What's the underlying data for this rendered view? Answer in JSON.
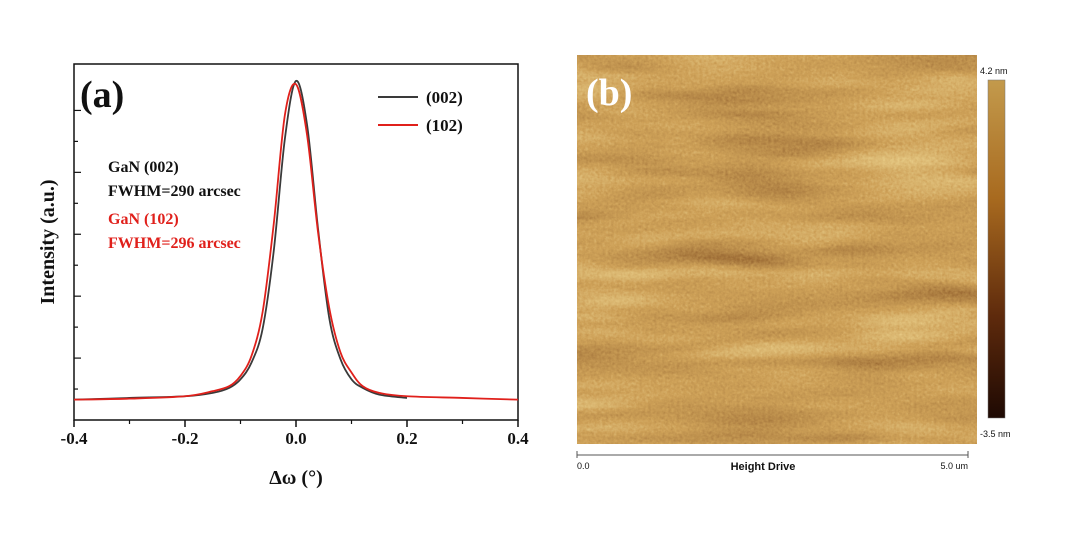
{
  "panel_a": {
    "label": "(a)",
    "annotations": [
      {
        "line1": "GaN (002)",
        "line2": "FWHM=290 arcsec",
        "color": "#111111"
      },
      {
        "line1": "GaN (102)",
        "line2": "FWHM=296 arcsec",
        "color": "#e0201b"
      }
    ]
  },
  "panel_b": {
    "label": "(b)",
    "colorbar_max": "4.2 nm",
    "colorbar_min": "-3.5 nm",
    "scale_start": "0.0",
    "scale_end": "5.0 um",
    "scale_title": "Height Drive",
    "colors": [
      "#2a1005",
      "#6b3410",
      "#a86a1f",
      "#d6ab4e"
    ]
  },
  "chart_data": {
    "type": "line",
    "xlabel": "Δω (°)",
    "ylabel": "Intensity (a.u.)",
    "xlim": [
      -0.4,
      0.4
    ],
    "ylim": [
      0,
      1.05
    ],
    "x_ticks": [
      -0.4,
      -0.2,
      0.0,
      0.2,
      0.4
    ],
    "x_tick_labels": [
      "-0.4",
      "-0.2",
      "0.0",
      "0.2",
      "0.4"
    ],
    "y_tick_labels_shown": false,
    "legend_position": "top-right",
    "series": [
      {
        "name": "(002)",
        "color": "#3a3a3a",
        "x": [
          -0.4,
          -0.3,
          -0.2,
          -0.15,
          -0.12,
          -0.1,
          -0.08,
          -0.06,
          -0.04,
          -0.02,
          0.0,
          0.02,
          0.04,
          0.06,
          0.08,
          0.1,
          0.12,
          0.15,
          0.2
        ],
        "y": [
          0.06,
          0.065,
          0.07,
          0.08,
          0.095,
          0.12,
          0.17,
          0.27,
          0.5,
          0.83,
          1.0,
          0.87,
          0.56,
          0.3,
          0.18,
          0.12,
          0.095,
          0.075,
          0.065
        ]
      },
      {
        "name": "(102)",
        "color": "#e0201b",
        "x": [
          -0.4,
          -0.3,
          -0.2,
          -0.15,
          -0.12,
          -0.1,
          -0.08,
          -0.06,
          -0.04,
          -0.02,
          0.0,
          0.02,
          0.04,
          0.06,
          0.08,
          0.1,
          0.12,
          0.15,
          0.2,
          0.3,
          0.4
        ],
        "y": [
          0.06,
          0.063,
          0.07,
          0.085,
          0.1,
          0.13,
          0.19,
          0.32,
          0.58,
          0.9,
          0.99,
          0.84,
          0.55,
          0.33,
          0.2,
          0.14,
          0.1,
          0.08,
          0.07,
          0.065,
          0.06
        ]
      }
    ]
  }
}
